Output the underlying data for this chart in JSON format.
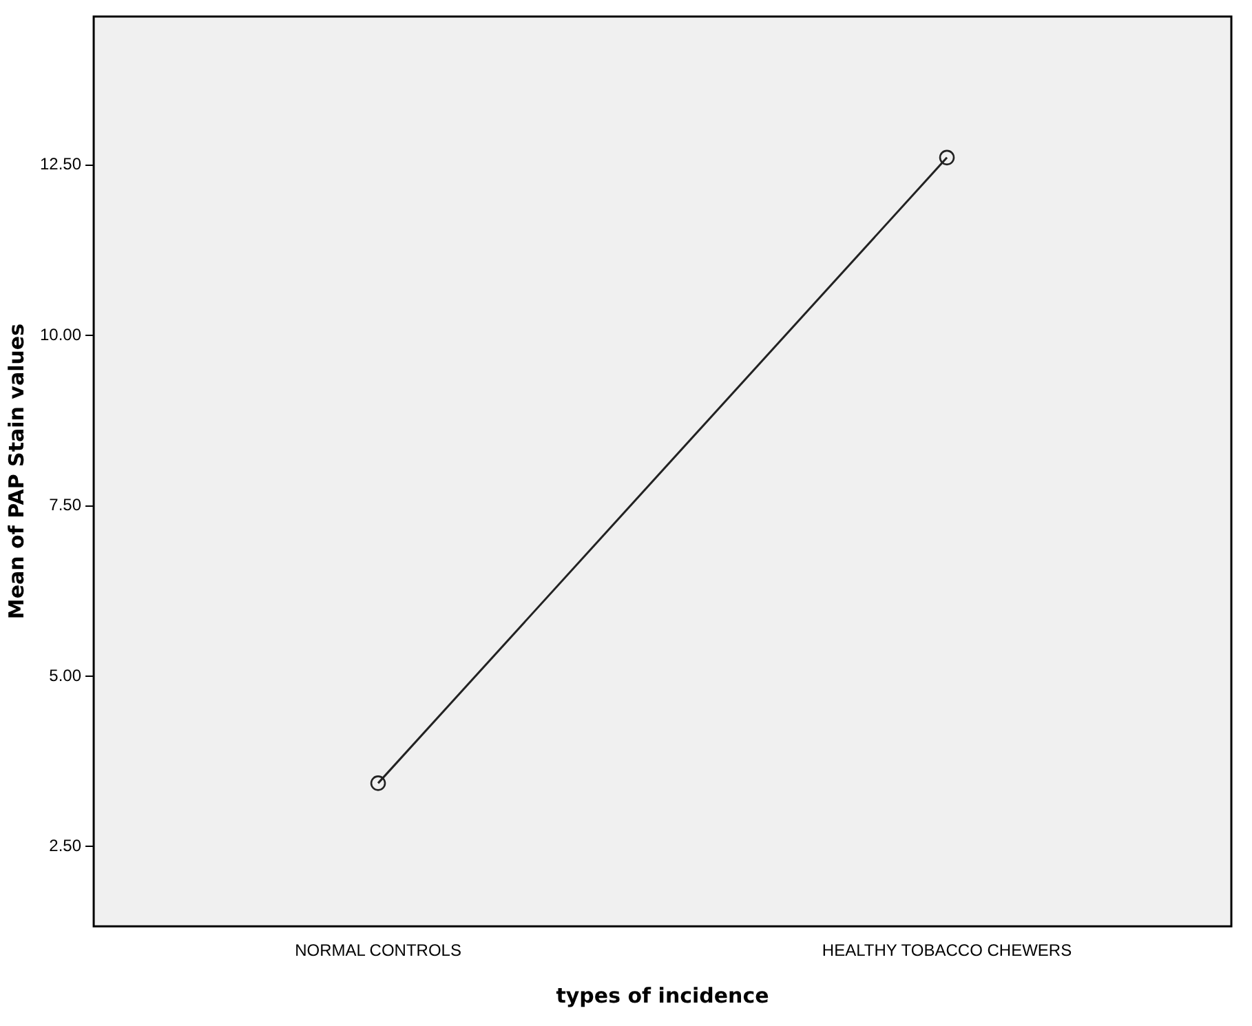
{
  "chart_data": {
    "type": "line",
    "xlabel": "types of incidence",
    "ylabel": "Mean of PAP Stain values",
    "categories": [
      "NORMAL CONTROLS",
      "HEALTHY TOBACCO CHEWERS"
    ],
    "series": [
      {
        "color": "#222222",
        "values": [
          3.43,
          12.61
        ]
      }
    ],
    "ylim": [
      1.33,
      14.68
    ],
    "yticks": [
      {
        "value": 2.5,
        "label": "2.50"
      },
      {
        "value": 5,
        "label": "5.00"
      },
      {
        "value": 7.5,
        "label": "7.50"
      },
      {
        "value": 10,
        "label": "10.00"
      },
      {
        "value": 12.5,
        "label": "12.50"
      }
    ],
    "grid": false,
    "legend": false,
    "marker": "circle",
    "line_style": "solid"
  }
}
